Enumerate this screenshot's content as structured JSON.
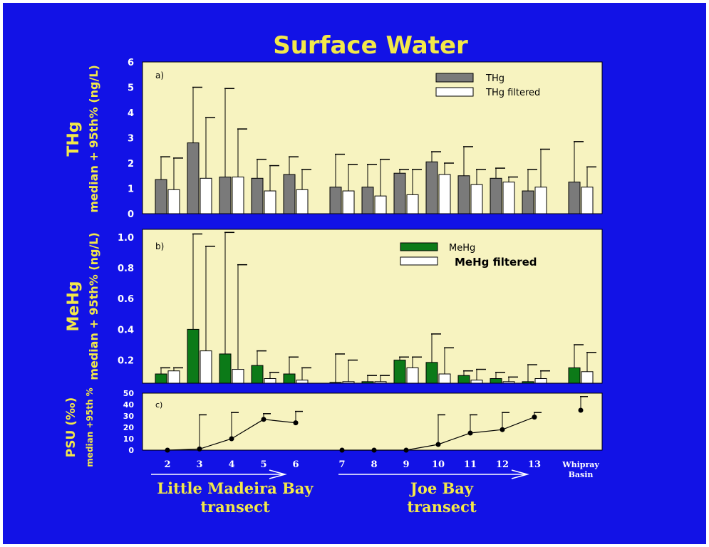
{
  "title": "Surface Water",
  "colors": {
    "background": "#1212e6",
    "panel": "#f7f3c0",
    "title": "#f2e84a",
    "thg": "#7a7a7a",
    "mehg": "#0c7a18",
    "filtered": "#ffffff",
    "axis_text": "#ffffff"
  },
  "x_labels": [
    "2",
    "3",
    "4",
    "5",
    "6",
    "7",
    "8",
    "9",
    "10",
    "11",
    "12",
    "13",
    "Whipray",
    "Basin"
  ],
  "transects": {
    "left_line1": "Little Madeira Bay",
    "left_line2": "transect",
    "right_line1": "Joe Bay",
    "right_line2": "transect"
  },
  "panels": {
    "a": {
      "label": "a)",
      "side_label": "THg",
      "ylabel": "median + 95th% (ng/L)",
      "legend": [
        "THg",
        "THg filtered"
      ],
      "ticks": [
        "0",
        "1",
        "2",
        "3",
        "4",
        "5",
        "6"
      ]
    },
    "b": {
      "label": "b)",
      "side_label": "MeHg",
      "ylabel": "median + 95th% (ng/L)",
      "legend": [
        "MeHg",
        "MeHg filtered"
      ],
      "ticks": [
        "0.2",
        "0.4",
        "0.6",
        "0.8",
        "1.0"
      ]
    },
    "c": {
      "label": "c)",
      "side_label": "PSU (‰)",
      "ylabel": "median +95th %",
      "ticks": [
        "0",
        "10",
        "20",
        "30",
        "40",
        "50"
      ]
    }
  },
  "chart_data": [
    {
      "type": "bar",
      "panel": "a",
      "categories": [
        "2",
        "3",
        "4",
        "5",
        "6",
        "7",
        "8",
        "9",
        "10",
        "11",
        "12",
        "13",
        "Whipray Basin"
      ],
      "ylim": [
        0,
        6
      ],
      "series": [
        {
          "name": "THg",
          "values": [
            1.35,
            2.8,
            1.45,
            1.4,
            1.55,
            1.05,
            1.05,
            1.6,
            2.05,
            1.5,
            1.4,
            0.9,
            1.25
          ],
          "p95": [
            2.25,
            5.0,
            4.95,
            2.15,
            2.25,
            2.35,
            1.95,
            1.75,
            2.45,
            2.65,
            1.8,
            1.75,
            2.85
          ]
        },
        {
          "name": "THg filtered",
          "values": [
            0.95,
            1.4,
            1.45,
            0.9,
            0.95,
            0.9,
            0.7,
            0.75,
            1.55,
            1.15,
            1.25,
            1.05,
            1.05
          ],
          "p95": [
            2.2,
            3.8,
            3.35,
            1.9,
            1.75,
            1.95,
            2.15,
            1.75,
            2.0,
            1.75,
            1.45,
            2.55,
            1.85
          ]
        }
      ]
    },
    {
      "type": "bar",
      "panel": "b",
      "categories": [
        "2",
        "3",
        "4",
        "5",
        "6",
        "7",
        "8",
        "9",
        "10",
        "11",
        "12",
        "13",
        "Whipray Basin"
      ],
      "ylim": [
        0.05,
        1.05
      ],
      "series": [
        {
          "name": "MeHg",
          "values": [
            0.11,
            0.4,
            0.24,
            0.165,
            0.11,
            0.055,
            0.06,
            0.2,
            0.185,
            0.1,
            0.08,
            0.06,
            0.15
          ],
          "p95": [
            0.15,
            1.02,
            1.03,
            0.26,
            0.22,
            0.24,
            0.1,
            0.22,
            0.37,
            0.13,
            0.12,
            0.17,
            0.3
          ]
        },
        {
          "name": "MeHg filtered",
          "values": [
            0.13,
            0.26,
            0.14,
            0.08,
            0.07,
            0.06,
            0.06,
            0.15,
            0.11,
            0.07,
            0.06,
            0.08,
            0.125
          ],
          "p95": [
            0.15,
            0.94,
            0.82,
            0.12,
            0.15,
            0.2,
            0.1,
            0.22,
            0.28,
            0.14,
            0.09,
            0.13,
            0.25
          ]
        }
      ]
    },
    {
      "type": "line",
      "panel": "c",
      "x": [
        "2",
        "3",
        "4",
        "5",
        "6",
        "7",
        "8",
        "9",
        "10",
        "11",
        "12",
        "13",
        "Whipray Basin"
      ],
      "ylim": [
        0,
        50
      ],
      "series": [
        {
          "name": "PSU",
          "values": [
            0,
            1,
            10,
            27,
            24,
            0,
            0,
            0,
            5,
            15,
            18,
            29,
            35
          ],
          "p95": [
            null,
            31,
            33,
            32,
            34,
            null,
            null,
            null,
            31,
            31,
            33,
            33,
            47
          ]
        }
      ]
    }
  ]
}
